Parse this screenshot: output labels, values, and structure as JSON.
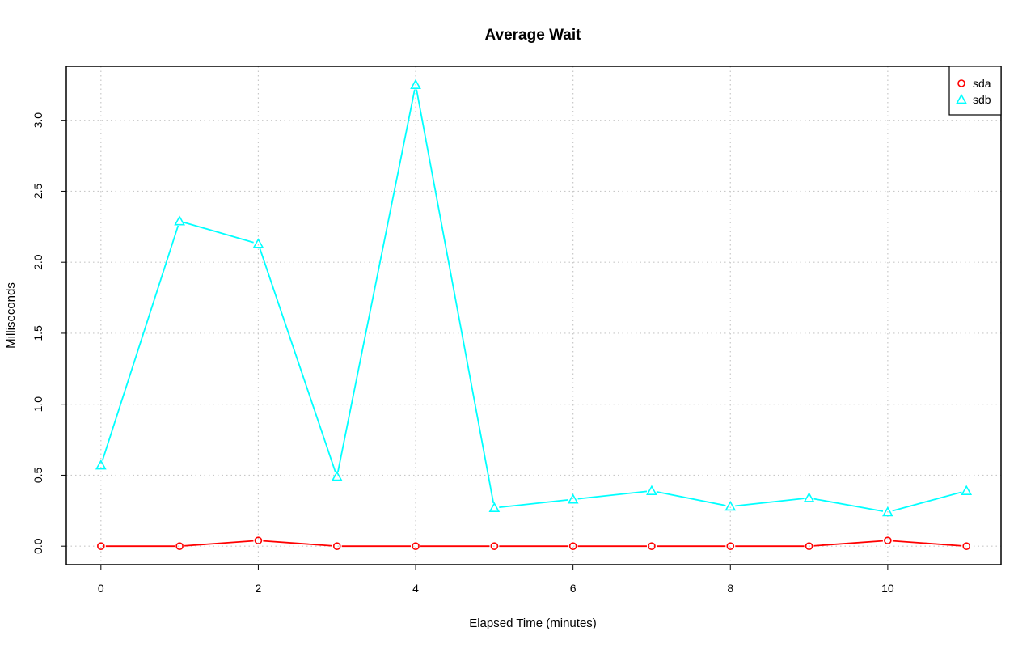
{
  "chart_data": {
    "type": "line",
    "title": "Average Wait",
    "xlabel": "Elapsed Time (minutes)",
    "ylabel": "Milliseconds",
    "x": [
      0,
      1,
      2,
      3,
      4,
      5,
      6,
      7,
      8,
      9,
      10,
      11
    ],
    "xlim": [
      -0.44,
      11.44
    ],
    "ylim": [
      -0.13,
      3.38
    ],
    "xticks": [
      0,
      2,
      4,
      6,
      8,
      10
    ],
    "xtick_labels": [
      "0",
      "2",
      "4",
      "6",
      "8",
      "10"
    ],
    "yticks": [
      0.0,
      0.5,
      1.0,
      1.5,
      2.0,
      2.5,
      3.0
    ],
    "ytick_labels": [
      "0.0",
      "0.5",
      "1.0",
      "1.5",
      "2.0",
      "2.5",
      "3.0"
    ],
    "grid": true,
    "legend_position": "top-right",
    "series": [
      {
        "name": "sda",
        "color": "#ff0000",
        "marker": "circle",
        "values": [
          0.0,
          0.0,
          0.04,
          0.0,
          0.0,
          0.0,
          0.0,
          0.0,
          0.0,
          0.0,
          0.04,
          0.0
        ]
      },
      {
        "name": "sdb",
        "color": "#00ffff",
        "marker": "triangle",
        "values": [
          0.57,
          2.29,
          2.13,
          0.49,
          3.25,
          0.27,
          0.33,
          0.39,
          0.28,
          0.34,
          0.24,
          0.39
        ]
      }
    ]
  }
}
